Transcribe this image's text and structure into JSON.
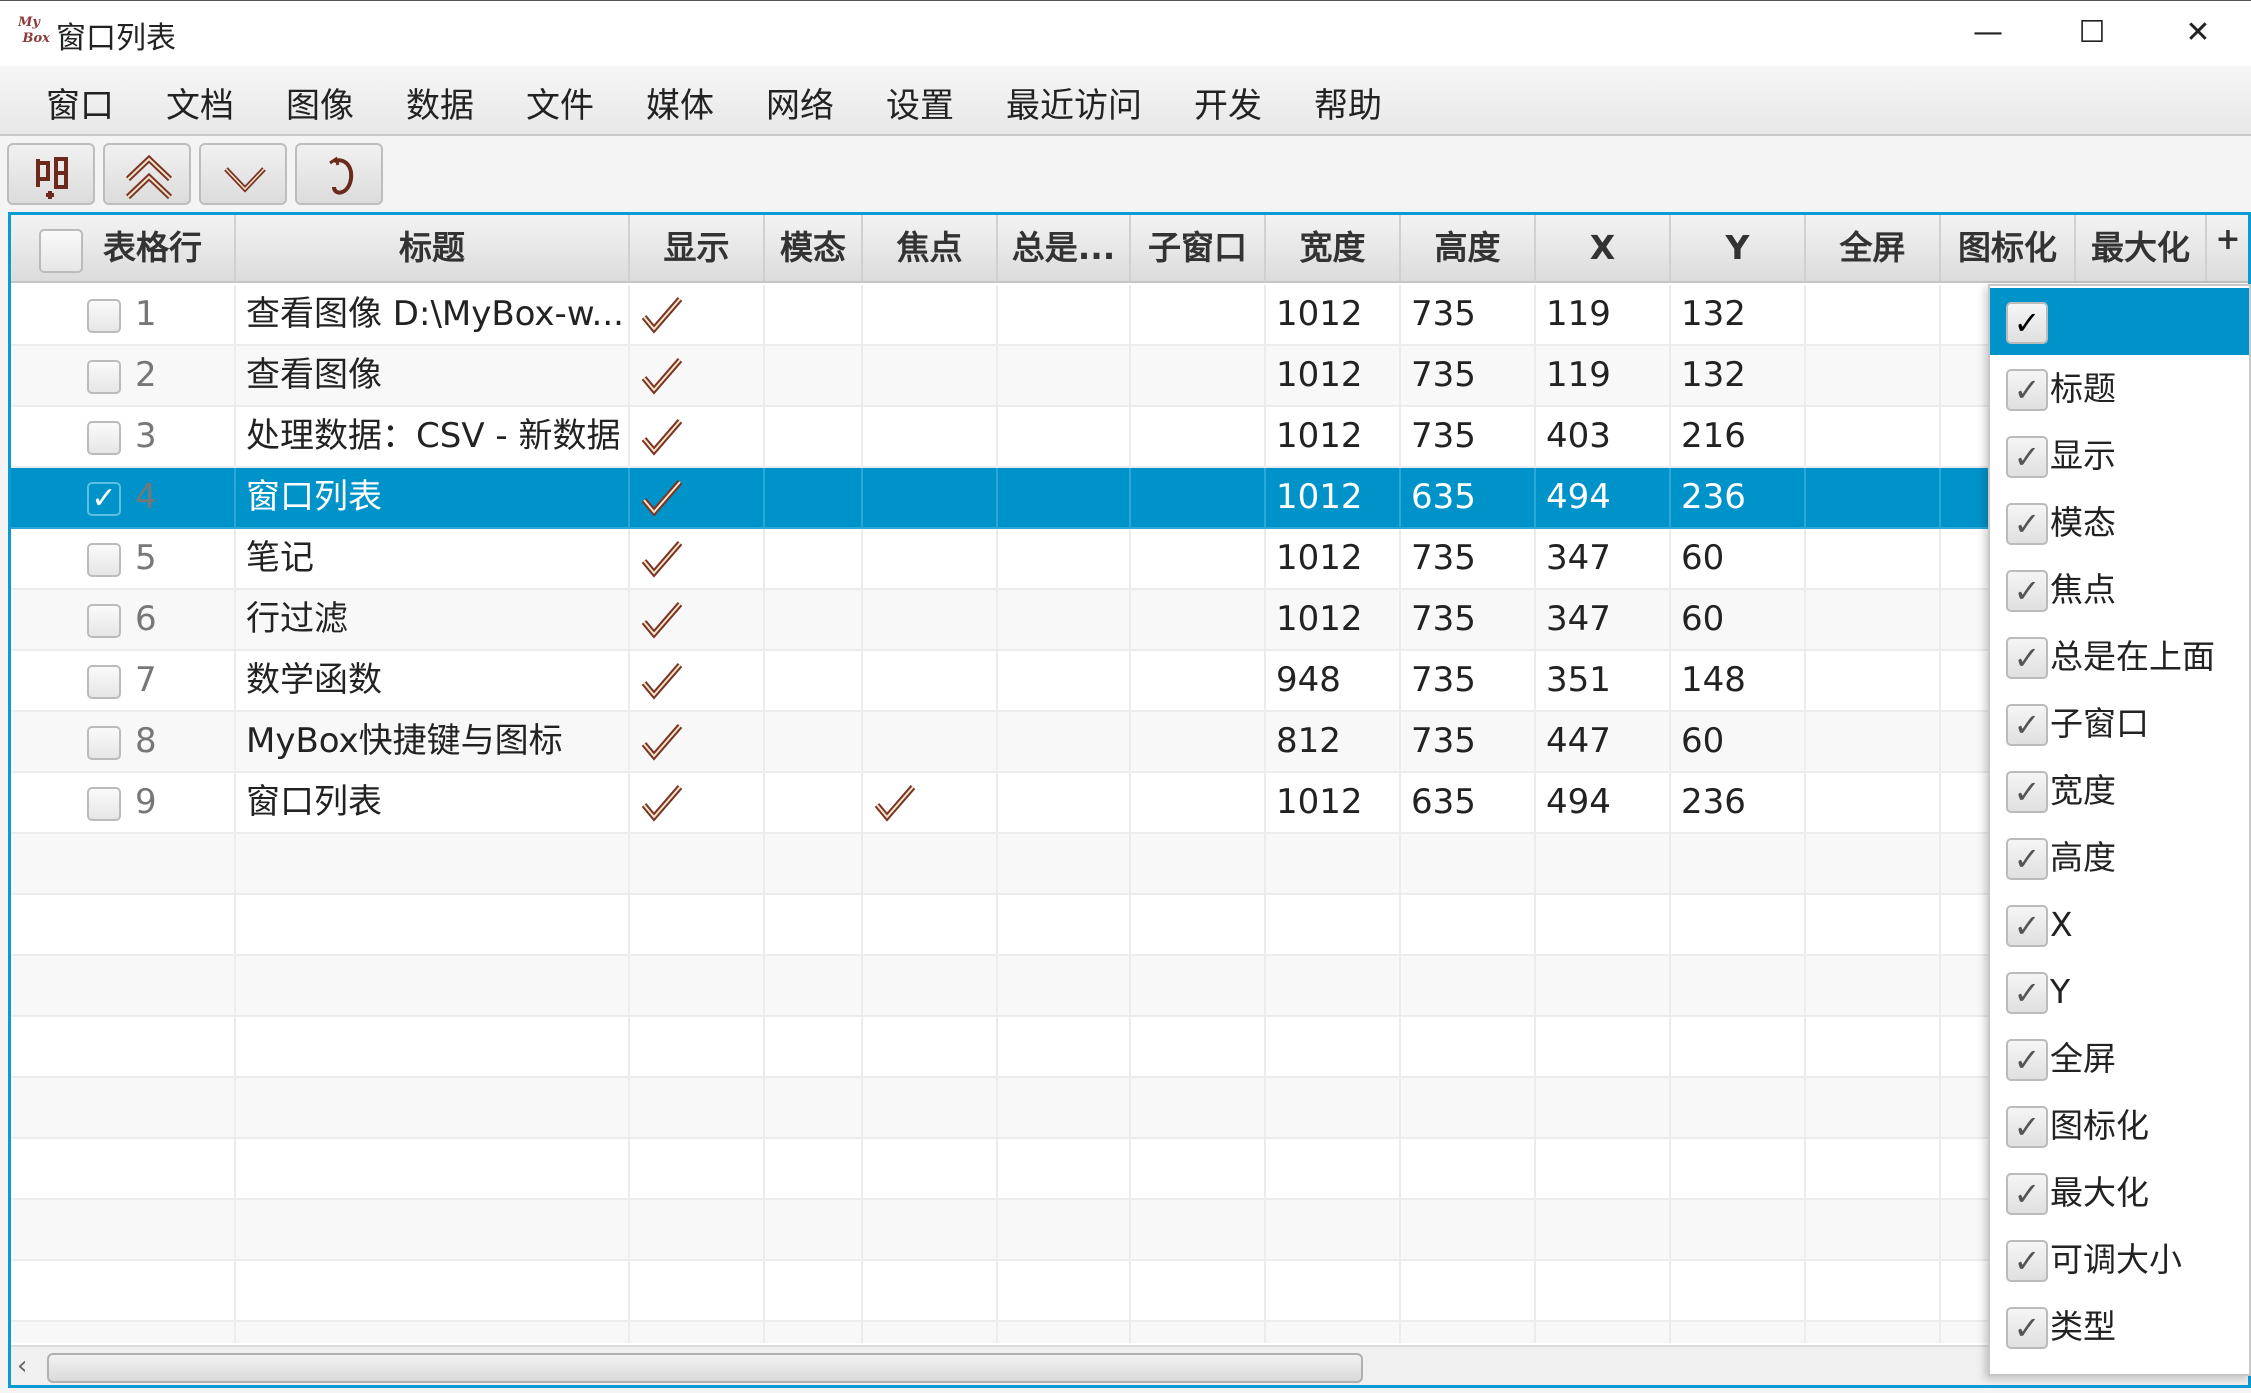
{
  "window": {
    "title": "窗口列表",
    "logo_text": "My Box",
    "minimize": "—",
    "maximize": "☐",
    "close": "✕"
  },
  "menu": [
    "窗口",
    "文档",
    "图像",
    "数据",
    "文件",
    "媒体",
    "网络",
    "设置",
    "最近访问",
    "开发",
    "帮助"
  ],
  "toolbar": [
    {
      "name": "select-icon"
    },
    {
      "name": "double-up-icon"
    },
    {
      "name": "chevron-down-icon"
    },
    {
      "name": "refresh-icon"
    }
  ],
  "columns": [
    "表格行",
    "标题",
    "显示",
    "模态",
    "焦点",
    "总是...",
    "子窗口",
    "宽度",
    "高度",
    "X",
    "Y",
    "全屏",
    "图标化",
    "最大化"
  ],
  "add_column": "+",
  "rows": [
    {
      "n": "1",
      "checked": false,
      "title": "查看图像 D:\\MyBox-w...",
      "shown": true,
      "focus": false,
      "w": "1012",
      "h": "735",
      "x": "119",
      "y": "132"
    },
    {
      "n": "2",
      "checked": false,
      "title": "查看图像",
      "shown": true,
      "focus": false,
      "w": "1012",
      "h": "735",
      "x": "119",
      "y": "132"
    },
    {
      "n": "3",
      "checked": false,
      "title": "处理数据：CSV - 新数据",
      "shown": true,
      "focus": false,
      "w": "1012",
      "h": "735",
      "x": "403",
      "y": "216"
    },
    {
      "n": "4",
      "checked": true,
      "selected": true,
      "title": "窗口列表",
      "shown": true,
      "focus": false,
      "w": "1012",
      "h": "635",
      "x": "494",
      "y": "236"
    },
    {
      "n": "5",
      "checked": false,
      "title": "笔记",
      "shown": true,
      "focus": false,
      "w": "1012",
      "h": "735",
      "x": "347",
      "y": "60"
    },
    {
      "n": "6",
      "checked": false,
      "title": "行过滤",
      "shown": true,
      "focus": false,
      "w": "1012",
      "h": "735",
      "x": "347",
      "y": "60"
    },
    {
      "n": "7",
      "checked": false,
      "title": "数学函数",
      "shown": true,
      "focus": false,
      "w": "948",
      "h": "735",
      "x": "351",
      "y": "148"
    },
    {
      "n": "8",
      "checked": false,
      "title": "MyBox快捷键与图标",
      "shown": true,
      "focus": false,
      "w": "812",
      "h": "735",
      "x": "447",
      "y": "60"
    },
    {
      "n": "9",
      "checked": false,
      "title": "窗口列表",
      "shown": true,
      "focus": true,
      "w": "1012",
      "h": "635",
      "x": "494",
      "y": "236"
    }
  ],
  "column_menu": {
    "check": "✓",
    "items": [
      "",
      "标题",
      "显示",
      "模态",
      "焦点",
      "总是在上面",
      "子窗口",
      "宽度",
      "高度",
      "X",
      "Y",
      "全屏",
      "图标化",
      "最大化",
      "可调大小",
      "类型"
    ]
  },
  "colors": {
    "accent": "#0093c9",
    "check": "#7a3324"
  }
}
